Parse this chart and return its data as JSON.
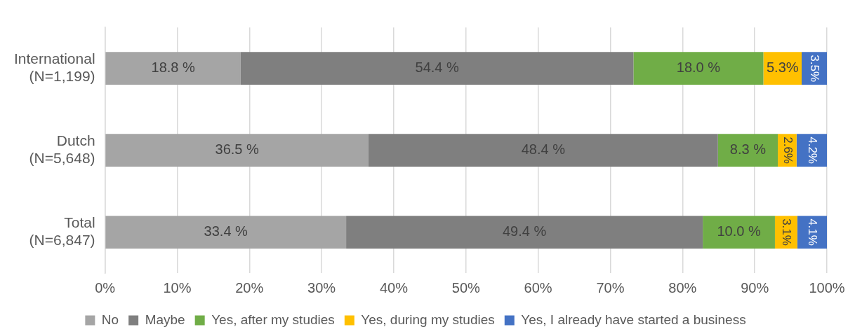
{
  "chart_data": {
    "type": "bar",
    "orientation": "horizontal",
    "stacked": true,
    "categories": [
      "International\n(N=1,199)",
      "Dutch\n(N=5,648)",
      "Total\n(N=6,847)"
    ],
    "series": [
      {
        "name": "No",
        "color": "#a5a5a5",
        "values": [
          18.8,
          36.5,
          33.4
        ],
        "value_labels": [
          "18.8 %",
          "36.5 %",
          "33.4 %"
        ]
      },
      {
        "name": "Maybe",
        "color": "#7f7f7f",
        "values": [
          54.4,
          48.4,
          49.4
        ],
        "value_labels": [
          "54.4 %",
          "48.4 %",
          "49.4 %"
        ]
      },
      {
        "name": "Yes, after my studies",
        "color": "#70ad47",
        "values": [
          18.0,
          8.3,
          10.0
        ],
        "value_labels": [
          "18.0 %",
          "8.3 %",
          "10.0 %"
        ]
      },
      {
        "name": "Yes, during my studies",
        "color": "#ffc000",
        "values": [
          5.3,
          2.6,
          3.1
        ],
        "value_labels": [
          "5.3%",
          "2.6%",
          "3.1%"
        ]
      },
      {
        "name": "Yes, I already have started a business",
        "color": "#4472c4",
        "values": [
          3.5,
          4.2,
          4.1
        ],
        "value_labels": [
          "3.5%",
          "4.2%",
          "4.1%"
        ]
      }
    ],
    "xlim": [
      0,
      100
    ],
    "xticks": [
      {
        "value": 0,
        "label": "0%"
      },
      {
        "value": 10,
        "label": "10%"
      },
      {
        "value": 20,
        "label": "20%"
      },
      {
        "value": 30,
        "label": "30%"
      },
      {
        "value": 40,
        "label": "40%"
      },
      {
        "value": 50,
        "label": "50%"
      },
      {
        "value": 60,
        "label": "60%"
      },
      {
        "value": 70,
        "label": "70%"
      },
      {
        "value": 80,
        "label": "80%"
      },
      {
        "value": 90,
        "label": "90%"
      },
      {
        "value": 100,
        "label": "100%"
      }
    ],
    "grid": "x",
    "legend": "bottom"
  }
}
